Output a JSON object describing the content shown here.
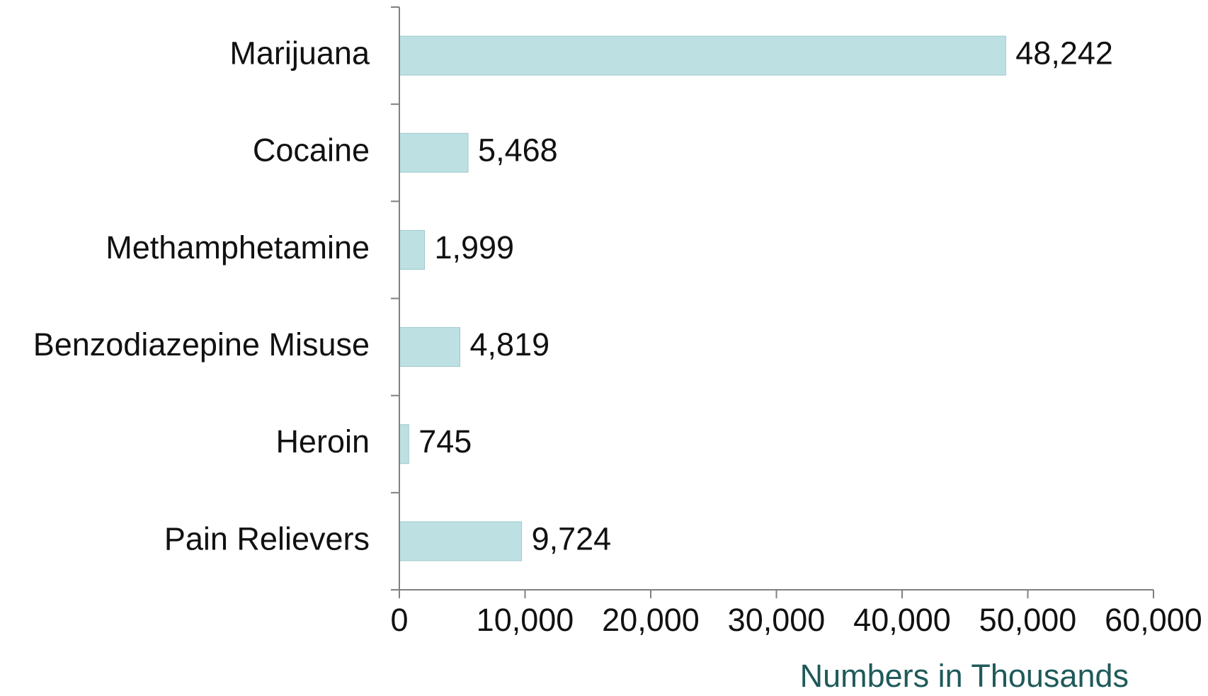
{
  "chart_data": {
    "type": "bar",
    "orientation": "horizontal",
    "categories": [
      "Marijuana",
      "Cocaine",
      "Methamphetamine",
      "Benzodiazepine Misuse",
      "Heroin",
      "Pain Relievers"
    ],
    "values": [
      48242,
      5468,
      1999,
      4819,
      745,
      9724
    ],
    "value_labels": [
      "48,242",
      "5,468",
      "1,999",
      "4,819",
      "745",
      "9,724"
    ],
    "title": "",
    "xlabel": "Numbers in Thousands",
    "ylabel": "",
    "xlim": [
      0,
      60000
    ],
    "x_ticks": [
      0,
      10000,
      20000,
      30000,
      40000,
      50000,
      60000
    ],
    "x_tick_labels": [
      "0",
      "10,000",
      "20,000",
      "30,000",
      "40,000",
      "50,000",
      "60,000"
    ],
    "grid": false,
    "legend": "none",
    "colors": {
      "bar_fill": "#bde0e3",
      "bar_stroke": "#9fc8cc",
      "axis": "#808080",
      "axis_title": "#1f5a5a"
    }
  }
}
